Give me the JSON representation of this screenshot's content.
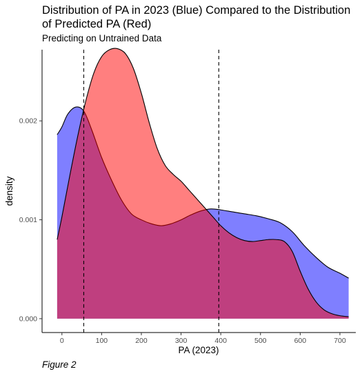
{
  "title": "Distribution of PA in 2023 (Blue) Compared to the Distribution of Predicted PA (Red)",
  "subtitle": "Predicting on Untrained Data",
  "caption": "Figure 2",
  "chart_data": {
    "type": "area",
    "xlabel": "PA (2023)",
    "ylabel": "density",
    "xlim": [
      -50,
      740
    ],
    "ylim": [
      -0.00014,
      0.00272
    ],
    "x_ticks": [
      0,
      100,
      200,
      300,
      400,
      500,
      600,
      700
    ],
    "x_tick_labels": [
      "0",
      "100",
      "200",
      "300",
      "400",
      "500",
      "600",
      "700"
    ],
    "y_ticks": [
      0,
      0.001,
      0.002
    ],
    "y_tick_labels": [
      "0.000",
      "0.001",
      "0.002"
    ],
    "vlines": [
      {
        "x": 55,
        "style": "dashed"
      },
      {
        "x": 395,
        "style": "dashed"
      }
    ],
    "grid": false,
    "legend": "none",
    "series": [
      {
        "color": "#0000ff",
        "alpha": 0.5,
        "points": [
          [
            -12,
            0.00186
          ],
          [
            0,
            0.00194
          ],
          [
            15,
            0.00207
          ],
          [
            35,
            0.00214
          ],
          [
            55,
            0.0021
          ],
          [
            75,
            0.00191
          ],
          [
            100,
            0.00163
          ],
          [
            125,
            0.0014
          ],
          [
            150,
            0.0012
          ],
          [
            175,
            0.00106
          ],
          [
            200,
            0.001
          ],
          [
            225,
            0.00096
          ],
          [
            250,
            0.00094
          ],
          [
            275,
            0.00096
          ],
          [
            300,
            0.001
          ],
          [
            325,
            0.00105
          ],
          [
            350,
            0.00109
          ],
          [
            375,
            0.00111
          ],
          [
            400,
            0.0011
          ],
          [
            430,
            0.00108
          ],
          [
            460,
            0.00106
          ],
          [
            490,
            0.00104
          ],
          [
            520,
            0.00101
          ],
          [
            550,
            0.00097
          ],
          [
            580,
            0.00088
          ],
          [
            610,
            0.00074
          ],
          [
            640,
            0.00062
          ],
          [
            670,
            0.00052
          ],
          [
            700,
            0.00046
          ],
          [
            722,
            0.00041
          ]
        ]
      },
      {
        "color": "#ff0000",
        "alpha": 0.5,
        "points": [
          [
            -12,
            0.0008
          ],
          [
            0,
            0.00103
          ],
          [
            20,
            0.00145
          ],
          [
            40,
            0.00185
          ],
          [
            60,
            0.0022
          ],
          [
            80,
            0.00248
          ],
          [
            100,
            0.00265
          ],
          [
            120,
            0.00272
          ],
          [
            140,
            0.00273
          ],
          [
            160,
            0.00268
          ],
          [
            180,
            0.00253
          ],
          [
            200,
            0.00228
          ],
          [
            220,
            0.00198
          ],
          [
            240,
            0.00172
          ],
          [
            260,
            0.00155
          ],
          [
            280,
            0.00146
          ],
          [
            300,
            0.00139
          ],
          [
            320,
            0.0013
          ],
          [
            340,
            0.00121
          ],
          [
            360,
            0.00112
          ],
          [
            380,
            0.00103
          ],
          [
            400,
            0.00094
          ],
          [
            420,
            0.00087
          ],
          [
            440,
            0.00082
          ],
          [
            460,
            0.00079
          ],
          [
            480,
            0.00078
          ],
          [
            500,
            0.00079
          ],
          [
            520,
            0.0008
          ],
          [
            540,
            0.0008
          ],
          [
            560,
            0.00078
          ],
          [
            580,
            0.00068
          ],
          [
            600,
            0.00048
          ],
          [
            620,
            0.0003
          ],
          [
            640,
            0.00017
          ],
          [
            660,
            9e-05
          ],
          [
            680,
            5e-05
          ],
          [
            700,
            3e-05
          ],
          [
            722,
            2e-05
          ]
        ]
      }
    ]
  }
}
